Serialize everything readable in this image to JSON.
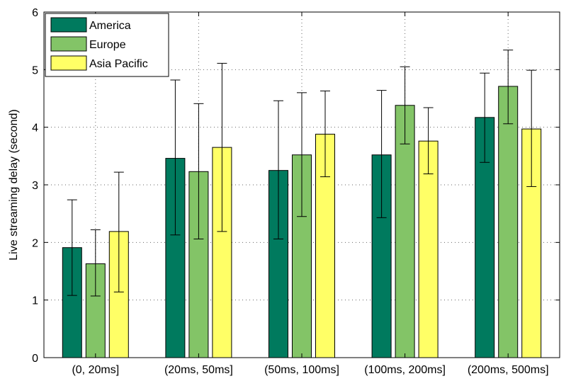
{
  "chart_data": {
    "type": "bar",
    "title": "",
    "xlabel": "",
    "ylabel": "Live streaming delay (second)",
    "ylim": [
      0,
      6
    ],
    "yticks": [
      0,
      1,
      2,
      3,
      4,
      5,
      6
    ],
    "grid": true,
    "legend_position": "top-left",
    "categories": [
      "(0, 20ms]",
      "(20ms, 50ms]",
      "(50ms, 100ms]",
      "(100ms, 200ms]",
      "(200ms, 500ms]"
    ],
    "series": [
      {
        "name": "America",
        "color": "#007a5e",
        "values": [
          1.91,
          3.46,
          3.25,
          3.52,
          4.17
        ],
        "err_low": [
          1.08,
          2.13,
          2.06,
          2.43,
          3.39
        ],
        "err_high": [
          2.74,
          4.82,
          4.46,
          4.64,
          4.94
        ]
      },
      {
        "name": "Europe",
        "color": "#83c467",
        "values": [
          1.63,
          3.23,
          3.52,
          4.38,
          4.71
        ],
        "err_low": [
          1.07,
          2.06,
          2.45,
          3.71,
          4.06
        ],
        "err_high": [
          2.22,
          4.41,
          4.6,
          5.05,
          5.34
        ]
      },
      {
        "name": "Asia Pacific",
        "color": "#ffff66",
        "values": [
          2.19,
          3.65,
          3.88,
          3.76,
          3.97
        ],
        "err_low": [
          1.14,
          2.19,
          3.14,
          3.19,
          2.97
        ],
        "err_high": [
          3.22,
          5.11,
          4.63,
          4.34,
          4.99
        ]
      }
    ]
  }
}
